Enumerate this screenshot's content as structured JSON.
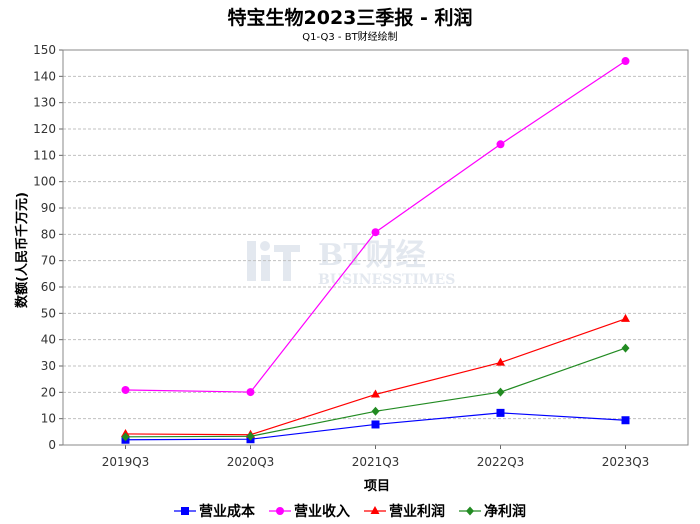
{
  "chart_data": {
    "type": "line",
    "title": "特宝生物2023三季报 - 利润",
    "subtitle": "Q1-Q3 - BT财经绘制",
    "xlabel": "项目",
    "ylabel": "数额(人民币千万元)",
    "categories": [
      "2019Q3",
      "2020Q3",
      "2021Q3",
      "2022Q3",
      "2023Q3"
    ],
    "ylim": [
      0,
      150
    ],
    "yticks": [
      0,
      10,
      20,
      30,
      40,
      50,
      60,
      70,
      80,
      90,
      100,
      110,
      120,
      130,
      140,
      150
    ],
    "grid": true,
    "legend_position": "bottom",
    "series": [
      {
        "name": "营业成本",
        "color": "#0000ff",
        "marker": "square",
        "values": [
          2.0,
          2.2,
          7.8,
          12.2,
          9.4
        ]
      },
      {
        "name": "营业收入",
        "color": "#ff00ff",
        "marker": "circle",
        "values": [
          20.9,
          20.1,
          80.8,
          114.2,
          145.8
        ]
      },
      {
        "name": "营业利润",
        "color": "#ff0000",
        "marker": "triangle",
        "values": [
          4.2,
          3.9,
          19.2,
          31.3,
          47.9
        ]
      },
      {
        "name": "净利润",
        "color": "#228b22",
        "marker": "diamond",
        "values": [
          3.1,
          3.3,
          12.8,
          20.1,
          36.8
        ]
      }
    ]
  },
  "watermark": {
    "main": "BT财经",
    "sub": "BUSINESSTIMES"
  }
}
